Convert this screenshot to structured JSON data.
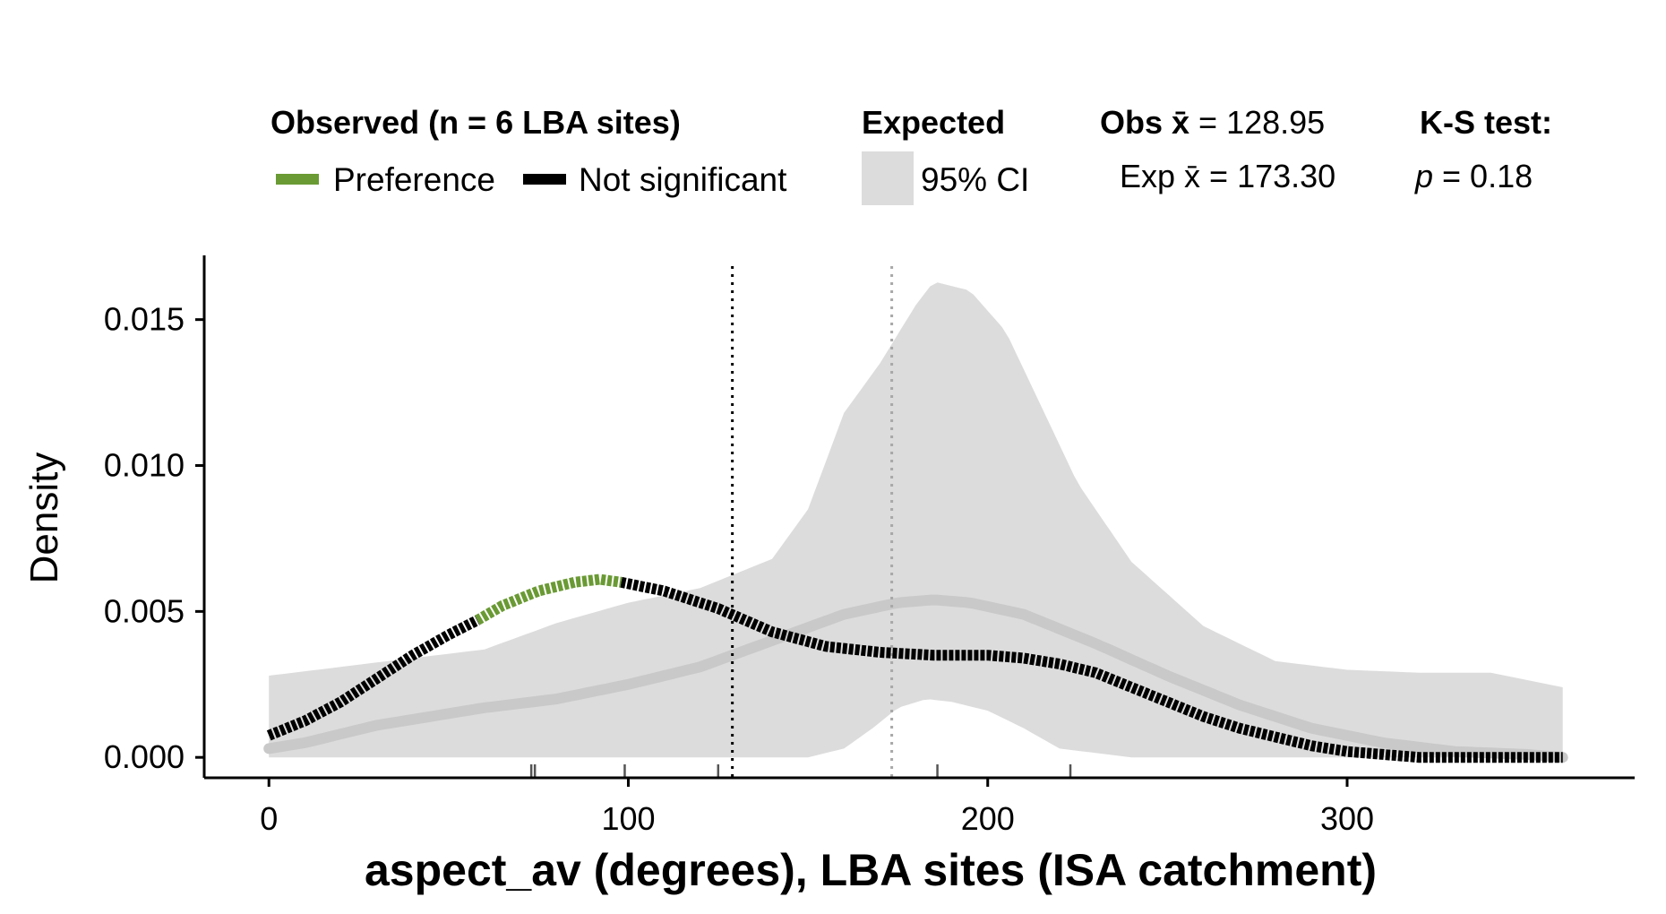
{
  "chart_data": {
    "type": "line",
    "xlabel": "aspect_av (degrees), LBA sites (ISA catchment)",
    "ylabel": "Density",
    "xlim": [
      -18,
      380
    ],
    "ylim": [
      -0.0007,
      0.0172
    ],
    "x_ticks": [
      "0",
      "100",
      "200",
      "300"
    ],
    "x_tick_values": [
      0,
      100,
      200,
      300
    ],
    "y_ticks": [
      "0.000",
      "0.005",
      "0.010",
      "0.015"
    ],
    "y_tick_values": [
      0,
      0.005,
      0.01,
      0.015
    ],
    "legend": {
      "observed_title": "Observed (n = 6 LBA sites)",
      "preference_label": "Preference",
      "not_significant_label": "Not significant",
      "expected_title": "Expected",
      "ci_label": "95% CI",
      "obs_mean_prefix": "Obs ",
      "obs_mean_symbol": "x̄",
      "obs_mean_value": " = 128.95",
      "exp_mean_prefix": "Exp ",
      "exp_mean_symbol": "x̄",
      "exp_mean_value": " = 173.30",
      "ks_title": "K-S test:",
      "ks_p_symbol": "p",
      "ks_p_value": " = 0.18"
    },
    "colors": {
      "preference": "#6a9a34",
      "not_significant": "#000000",
      "ci_band": "#dcdcdc",
      "expected_line": "#c9c9c9",
      "obs_mean_line": "#000000",
      "exp_mean_line": "#a8a8a8"
    },
    "observed_mean": 128.95,
    "expected_mean": 173.3,
    "rug_x": [
      73,
      74,
      99,
      125,
      186,
      223
    ],
    "preference_range": [
      58,
      98
    ],
    "observed_density": {
      "x": [
        0,
        10,
        20,
        30,
        40,
        50,
        58,
        65,
        75,
        85,
        92,
        98,
        110,
        125,
        140,
        155,
        170,
        185,
        200,
        210,
        220,
        230,
        240,
        250,
        260,
        270,
        280,
        290,
        300,
        310,
        320,
        330,
        340,
        350,
        360
      ],
      "y": [
        0.00075,
        0.00125,
        0.0019,
        0.0027,
        0.0035,
        0.0042,
        0.0047,
        0.0052,
        0.0057,
        0.006,
        0.0061,
        0.006,
        0.0057,
        0.0051,
        0.0043,
        0.0038,
        0.0036,
        0.0035,
        0.0035,
        0.0034,
        0.0032,
        0.0029,
        0.0024,
        0.0019,
        0.0014,
        0.001,
        0.0007,
        0.0004,
        0.0002,
        0.0001,
        0.0,
        0.0,
        0.0,
        0.0,
        0.0
      ]
    },
    "expected_density": {
      "x": [
        0,
        10,
        20,
        30,
        40,
        60,
        80,
        100,
        120,
        140,
        160,
        175,
        185,
        195,
        210,
        230,
        250,
        270,
        290,
        310,
        330,
        350,
        360
      ],
      "y": [
        0.0003,
        0.0005,
        0.0008,
        0.0011,
        0.0013,
        0.0017,
        0.002,
        0.0025,
        0.0031,
        0.004,
        0.0049,
        0.0053,
        0.0054,
        0.0053,
        0.0049,
        0.0039,
        0.0028,
        0.0018,
        0.001,
        0.0005,
        0.0002,
        0.0001,
        0.0
      ]
    },
    "ci_upper": {
      "x": [
        0,
        20,
        40,
        60,
        80,
        100,
        120,
        140,
        150,
        160,
        170,
        180,
        185,
        195,
        205,
        215,
        225,
        240,
        260,
        280,
        300,
        320,
        340,
        360
      ],
      "y": [
        0.0028,
        0.0031,
        0.0034,
        0.0037,
        0.0046,
        0.0053,
        0.0058,
        0.0068,
        0.0085,
        0.0118,
        0.0135,
        0.0155,
        0.0163,
        0.016,
        0.0146,
        0.012,
        0.0094,
        0.0067,
        0.0045,
        0.0033,
        0.003,
        0.0029,
        0.0029,
        0.0024
      ]
    },
    "ci_lower": {
      "x": [
        0,
        150,
        160,
        168,
        175,
        183,
        190,
        200,
        210,
        220,
        240,
        360
      ],
      "y": [
        0.0,
        0.0,
        0.0003,
        0.001,
        0.0017,
        0.002,
        0.0019,
        0.0016,
        0.001,
        0.0003,
        0.0,
        0.0
      ]
    }
  }
}
